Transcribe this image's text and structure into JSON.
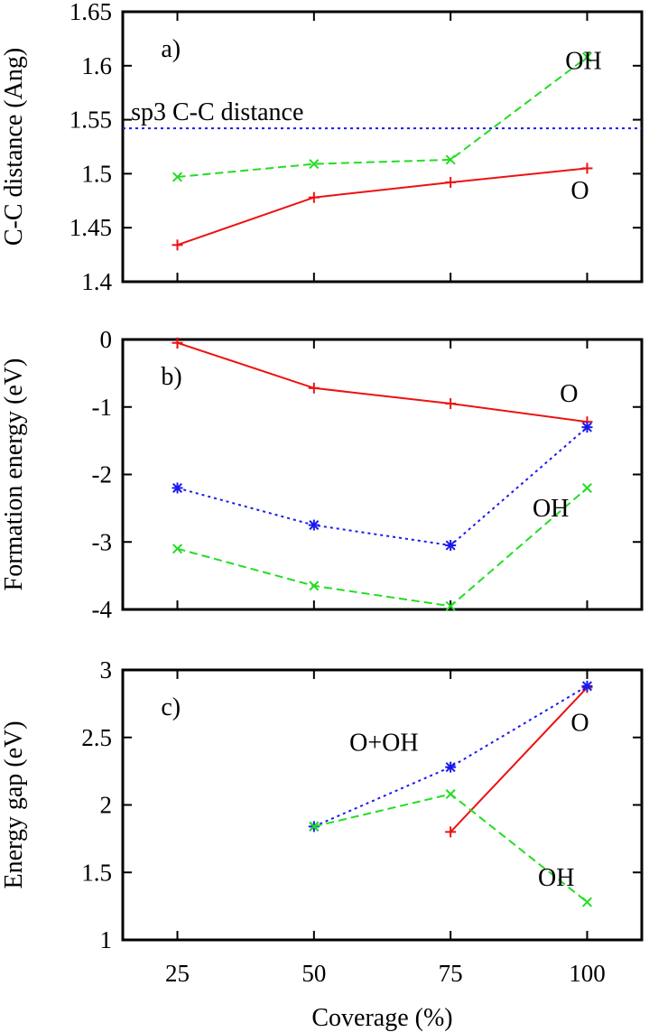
{
  "chart_data": [
    {
      "type": "line",
      "panel_label": "a)",
      "xlabel": "",
      "ylabel": "C-C distance (Ang)",
      "xlim": [
        15,
        110
      ],
      "ylim": [
        1.4,
        1.65
      ],
      "xticks": [
        "25",
        "50",
        "75",
        "100"
      ],
      "yticks": [
        "1.4",
        "1.45",
        "1.5",
        "1.55",
        "1.6",
        "1.65"
      ],
      "x": [
        25,
        50,
        75,
        100
      ],
      "series": [
        {
          "name": "O",
          "color": "#ee1111",
          "dash": "solid",
          "marker": "plus",
          "values": [
            1.434,
            1.478,
            1.492,
            1.505
          ]
        },
        {
          "name": "OH",
          "color": "#22dd22",
          "dash": "dashed",
          "marker": "x",
          "values": [
            1.497,
            1.509,
            1.513,
            1.608
          ]
        }
      ],
      "reference_line": {
        "label": "sp3 C-C distance",
        "value": 1.542,
        "color": "#1a1aee"
      },
      "annotations": [
        {
          "text": "OH",
          "x": 96,
          "y": 1.597
        },
        {
          "text": "O",
          "x": 97,
          "y": 1.477
        }
      ]
    },
    {
      "type": "line",
      "panel_label": "b)",
      "xlabel": "",
      "ylabel": "Formation energy (eV)",
      "xlim": [
        15,
        110
      ],
      "ylim": [
        -4,
        0
      ],
      "xticks": [
        "25",
        "50",
        "75",
        "100"
      ],
      "yticks": [
        "-4",
        "-3",
        "-2",
        "-1",
        "0"
      ],
      "x": [
        25,
        50,
        75,
        100
      ],
      "series": [
        {
          "name": "O",
          "color": "#ee1111",
          "dash": "solid",
          "marker": "plus",
          "values": [
            -0.05,
            -0.72,
            -0.95,
            -1.22
          ]
        },
        {
          "name": "O+OH",
          "color": "#1a1aee",
          "dash": "dotted",
          "marker": "star",
          "values": [
            -2.2,
            -2.75,
            -3.05,
            -1.3
          ]
        },
        {
          "name": "OH",
          "color": "#22dd22",
          "dash": "dashed",
          "marker": "x",
          "values": [
            -3.1,
            -3.65,
            -3.95,
            -2.2
          ]
        }
      ],
      "annotations": [
        {
          "text": "O",
          "x": 95,
          "y": -0.92
        },
        {
          "text": "OH",
          "x": 90,
          "y": -2.62
        }
      ]
    },
    {
      "type": "line",
      "panel_label": "c)",
      "xlabel": "Coverage (%)",
      "ylabel": "Energy gap (eV)",
      "xlim": [
        15,
        110
      ],
      "ylim": [
        1,
        3
      ],
      "xticks": [
        "25",
        "50",
        "75",
        "100"
      ],
      "yticks": [
        "1",
        "1.5",
        "2",
        "2.5",
        "3"
      ],
      "series": [
        {
          "name": "O",
          "color": "#ee1111",
          "dash": "solid",
          "marker": "plus",
          "x": [
            75,
            100
          ],
          "values": [
            1.8,
            2.87
          ]
        },
        {
          "name": "O+OH",
          "color": "#1a1aee",
          "dash": "dotted",
          "marker": "star",
          "x": [
            50,
            75,
            100
          ],
          "values": [
            1.84,
            2.28,
            2.88
          ]
        },
        {
          "name": "OH",
          "color": "#22dd22",
          "dash": "dashed",
          "marker": "x",
          "x": [
            50,
            75,
            100
          ],
          "values": [
            1.84,
            2.08,
            1.28
          ]
        }
      ],
      "annotations": [
        {
          "text": "O+OH",
          "x": 56.5,
          "y": 2.4
        },
        {
          "text": "O",
          "x": 97,
          "y": 2.55
        },
        {
          "text": "OH",
          "x": 91,
          "y": 1.4
        }
      ]
    }
  ]
}
